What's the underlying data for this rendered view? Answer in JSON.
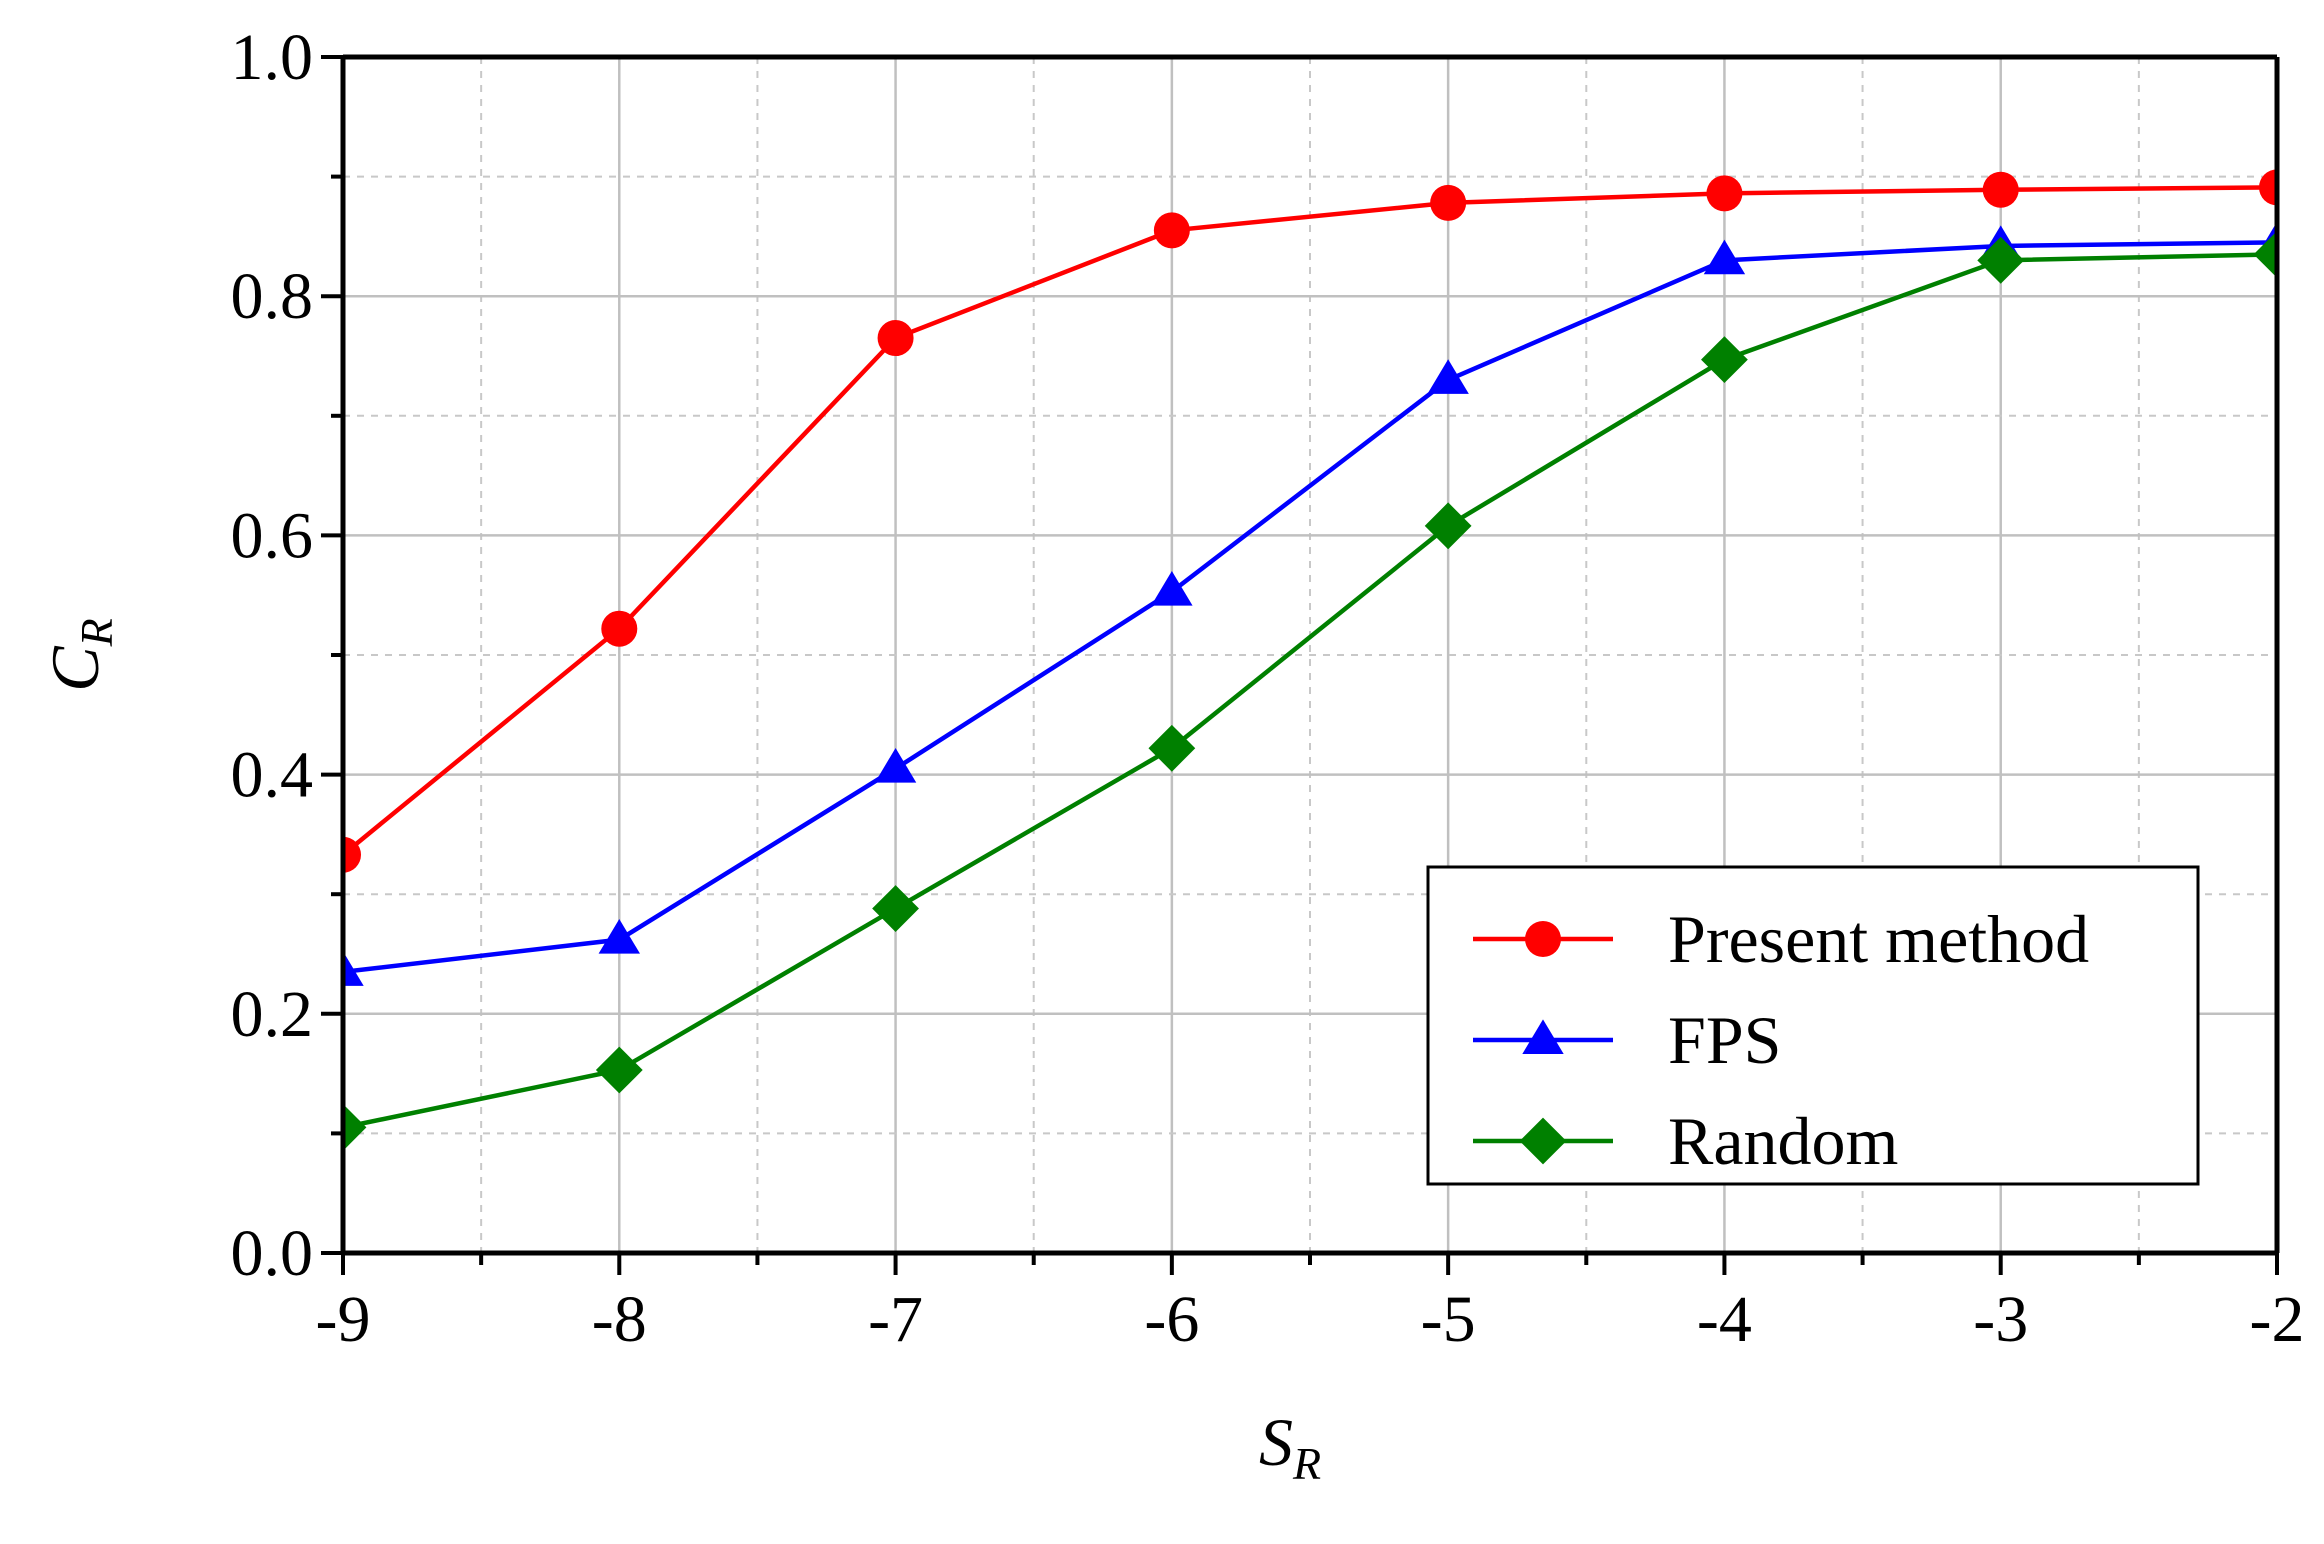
{
  "chart_data": {
    "type": "line",
    "title": "",
    "xlabel": {
      "main": "S",
      "sub": "R"
    },
    "ylabel": {
      "main": "C",
      "sub": "R"
    },
    "xlim": [
      -9,
      -2
    ],
    "ylim": [
      0.0,
      1.0
    ],
    "x_ticks": [
      -9,
      -8,
      -7,
      -6,
      -5,
      -4,
      -3,
      -2
    ],
    "x_tick_labels": [
      "-9",
      "-8",
      "-7",
      "-6",
      "-5",
      "-4",
      "-3",
      "-2"
    ],
    "y_ticks": [
      0.0,
      0.2,
      0.4,
      0.6,
      0.8,
      1.0
    ],
    "y_tick_labels": [
      "0.0",
      "0.2",
      "0.4",
      "0.6",
      "0.8",
      "1.0"
    ],
    "grid": true,
    "legend_position": "bottom-right",
    "x": [
      -9,
      -8,
      -7,
      -6,
      -5,
      -4,
      -3,
      -2
    ],
    "series": [
      {
        "name": "Present method",
        "color": "#ff0000",
        "marker": "circle",
        "values": [
          0.333,
          0.522,
          0.765,
          0.855,
          0.878,
          0.886,
          0.889,
          0.891
        ]
      },
      {
        "name": "FPS",
        "color": "#0000ff",
        "marker": "triangle",
        "values": [
          0.235,
          0.262,
          0.405,
          0.553,
          0.73,
          0.83,
          0.842,
          0.845
        ]
      },
      {
        "name": "Random",
        "color": "#008000",
        "marker": "diamond",
        "values": [
          0.105,
          0.153,
          0.288,
          0.422,
          0.608,
          0.747,
          0.83,
          0.835
        ]
      }
    ]
  }
}
